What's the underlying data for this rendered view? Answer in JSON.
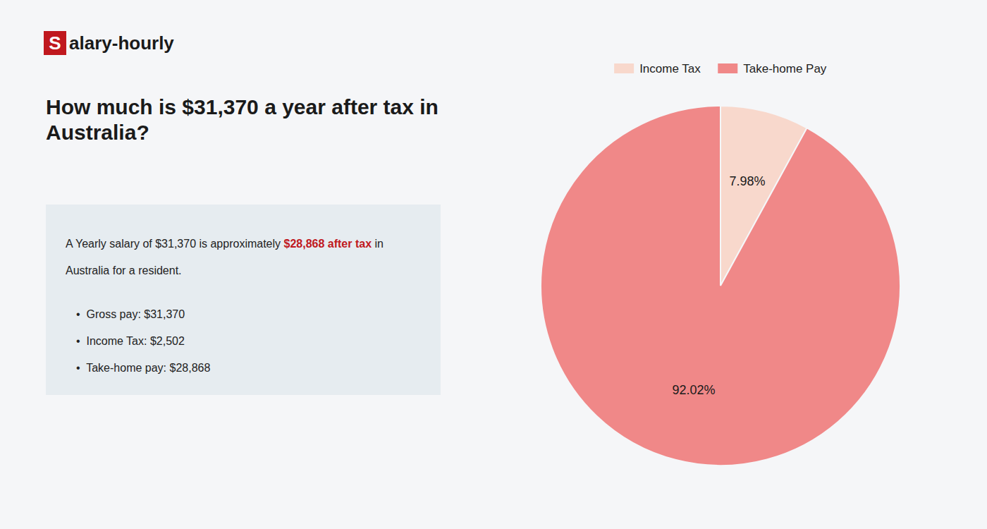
{
  "chart_data": {
    "type": "pie",
    "title": [
      "How much is $31,370 a year after tax in",
      "Australia?"
    ],
    "annotations": [
      "S",
      "alary-hourly",
      "A Yearly salary of $31,370 is approximately ",
      "$28,868 after tax",
      " in",
      "Australia for a resident.",
      "•  Gross pay: $31,370",
      "•  Income Tax: $2,502",
      "•  Take-home pay: $28,868"
    ],
    "categories": [
      "Income Tax",
      "Take-home Pay"
    ],
    "values": [
      7.98,
      92.02
    ],
    "value_labels": [
      "7.98%",
      "92.02%"
    ],
    "colors": [
      "#f8d8cc",
      "#f08888"
    ],
    "data_labels": true,
    "legend": "top"
  }
}
